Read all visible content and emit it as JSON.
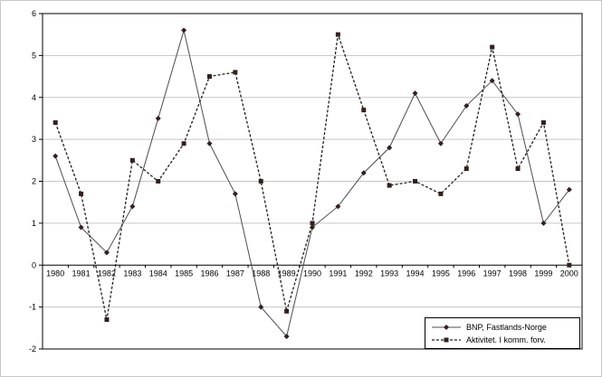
{
  "chart": {
    "colors": {
      "background": "#ffffff",
      "plot_background": "#ffffff",
      "gridline": "#c6c6c6",
      "axis": "#000000"
    }
  },
  "chart_data": {
    "type": "line",
    "title": "",
    "xlabel": "",
    "ylabel": "",
    "x": [
      1980,
      1981,
      1982,
      1983,
      1984,
      1985,
      1986,
      1987,
      1988,
      1989,
      1990,
      1991,
      1992,
      1993,
      1994,
      1995,
      1996,
      1997,
      1998,
      1999,
      2000
    ],
    "series": [
      {
        "name": "BNP, Fastlands-Norge",
        "marker": "diamond",
        "line_style": "solid",
        "line_color": "#4d4d4d",
        "marker_color": "#33201d",
        "values": [
          2.6,
          0.9,
          0.3,
          1.4,
          3.5,
          5.6,
          2.9,
          1.7,
          -1.0,
          -1.7,
          0.9,
          1.4,
          2.2,
          2.8,
          4.1,
          2.9,
          3.8,
          4.4,
          3.6,
          1.0,
          1.8
        ]
      },
      {
        "name": "Aktivitet. I komm. forv.",
        "marker": "square",
        "line_style": "dashed",
        "line_color": "#1f1f1f",
        "marker_color": "#33201d",
        "values": [
          3.4,
          1.7,
          -1.3,
          2.5,
          2.0,
          2.9,
          4.5,
          4.6,
          2.0,
          -1.1,
          1.0,
          5.5,
          3.7,
          1.9,
          2.0,
          1.7,
          2.3,
          5.2,
          2.3,
          3.4,
          0.0
        ]
      }
    ],
    "ylim": [
      -2,
      6
    ],
    "ytick_step": 1,
    "grid": true,
    "legend_position": "bottom-right"
  }
}
